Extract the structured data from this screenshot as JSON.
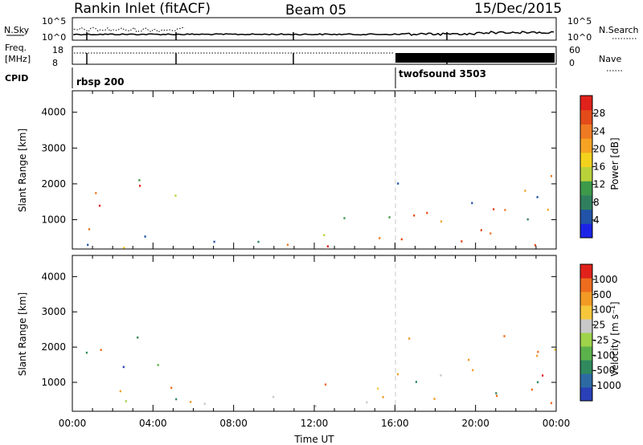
{
  "header": {
    "station": "Rankin Inlet (fitACF)",
    "beam": "Beam 05",
    "date": "15/Dec/2015"
  },
  "params": {
    "nsky_label": "N.Sky",
    "nsky_ticks": [
      "10^5",
      "10^0"
    ],
    "nsearch_label": "N.Search",
    "nsearch_ticks": [
      "10^5",
      "10^0"
    ],
    "freq_label_1": "Freq.",
    "freq_label_2": "[MHz]",
    "freq_ticks": [
      "18",
      "8"
    ],
    "nave_label": "Nave",
    "nave_ticks": [
      "60",
      "0"
    ],
    "cpid_label": "CPID",
    "cpid_segments": [
      {
        "name": "rbsp 200",
        "start_hour": 0,
        "end_hour": 16
      },
      {
        "name": "twofsound 3503",
        "start_hour": 16,
        "end_hour": 24
      }
    ]
  },
  "chart_data": [
    {
      "type": "heatmap",
      "quantity": "power",
      "ylabel": "Slant Range [km]",
      "xlabel": "",
      "x_ticks": [
        "00:00",
        "04:00",
        "08:00",
        "12:00",
        "16:00",
        "20:00",
        "00:00"
      ],
      "xlim_hours": [
        0,
        24
      ],
      "ylim_km": [
        180,
        4600
      ],
      "y_ticks": [
        1000,
        2000,
        3000,
        4000
      ],
      "colorbar": {
        "label": "Power [dB]",
        "ticks": [
          "28",
          "24",
          "20",
          "16",
          "12",
          "8",
          "4"
        ],
        "colors": [
          "#1b24e6",
          "#2153a8",
          "#2f7f5e",
          "#3d9a4a",
          "#b9d23a",
          "#f3d21d",
          "#f6a324",
          "#ef7a23",
          "#e44b1a",
          "#e0221a"
        ]
      }
    },
    {
      "type": "heatmap",
      "quantity": "velocity",
      "ylabel": "Slant Range [km]",
      "xlabel": "Time UT",
      "x_ticks": [
        "00:00",
        "04:00",
        "08:00",
        "12:00",
        "16:00",
        "20:00",
        "00:00"
      ],
      "xlim_hours": [
        0,
        24
      ],
      "ylim_km": [
        180,
        4600
      ],
      "y_ticks": [
        1000,
        2000,
        3000,
        4000
      ],
      "colorbar": {
        "label": "Velocity [m s⁻¹]",
        "ticks": [
          "1000",
          "500",
          "100",
          "25",
          "-25",
          "-100",
          "-500",
          "-1000"
        ],
        "colors": [
          "#2940b8",
          "#2d6aa4",
          "#2f8a5e",
          "#5cb24a",
          "#9fd34a",
          "#c8c8c8",
          "#f6c73a",
          "#f29a24",
          "#ee6c1e",
          "#e0221a"
        ]
      }
    }
  ],
  "scatter_regions": {
    "power": [
      {
        "h0": 0.1,
        "h1": 1.3,
        "r0": 1450,
        "r1": 2100,
        "c": [
          "#e44b1a",
          "#ef7a23",
          "#f3d21d",
          "#3d9a4a",
          "#e0221a"
        ]
      },
      {
        "h0": 1.3,
        "h1": 3.8,
        "r0": 1300,
        "r1": 2450,
        "c": [
          "#e44b1a",
          "#ef7a23",
          "#f6a324",
          "#2153a8",
          "#3d9a4a",
          "#e0221a"
        ]
      },
      {
        "h0": 3.8,
        "h1": 5.1,
        "r0": 1050,
        "r1": 2050,
        "c": [
          "#2153a8",
          "#3d9a4a",
          "#b9d23a",
          "#2f7f5e"
        ]
      },
      {
        "h0": 0.1,
        "h1": 5.3,
        "r0": 220,
        "r1": 900,
        "c": [
          "#e0221a",
          "#e44b1a",
          "#ef7a23",
          "#f6a324",
          "#f3d21d",
          "#3d9a4a",
          "#2153a8"
        ]
      },
      {
        "h0": 5.3,
        "h1": 9.5,
        "r0": 220,
        "r1": 650,
        "c": [
          "#2153a8",
          "#3d9a4a",
          "#b9d23a",
          "#2f7f5e",
          "#f6a324"
        ]
      },
      {
        "h0": 9.5,
        "h1": 12.5,
        "r0": 220,
        "r1": 700,
        "c": [
          "#2153a8",
          "#3d9a4a",
          "#ef7a23",
          "#b9d23a"
        ]
      },
      {
        "h0": 12.5,
        "h1": 14.8,
        "r0": 260,
        "r1": 1200,
        "c": [
          "#ef7a23",
          "#e44b1a",
          "#f6a324",
          "#3d9a4a",
          "#2153a8",
          "#e0221a"
        ]
      },
      {
        "h0": 14.8,
        "h1": 16.3,
        "r0": 300,
        "r1": 1700,
        "c": [
          "#ef7a23",
          "#f6a324",
          "#b9d23a",
          "#3d9a4a",
          "#2153a8"
        ]
      },
      {
        "h0": 16.0,
        "h1": 17.4,
        "r0": 1900,
        "r1": 2400,
        "c": [
          "#2153a8",
          "#3d9a4a",
          "#2f7f5e"
        ]
      },
      {
        "h0": 16.0,
        "h1": 19.2,
        "r0": 300,
        "r1": 1300,
        "c": [
          "#e44b1a",
          "#ef7a23",
          "#f6a324",
          "#3d9a4a",
          "#e0221a",
          "#2153a8"
        ]
      },
      {
        "h0": 19.2,
        "h1": 24.0,
        "r0": 300,
        "r1": 1200,
        "c": [
          "#e0221a",
          "#e44b1a",
          "#ef7a23",
          "#2f7f5e",
          "#3d9a4a",
          "#f6a324"
        ]
      },
      {
        "h0": 19.5,
        "h1": 24.0,
        "r0": 1200,
        "r1": 2500,
        "c": [
          "#ef7a23",
          "#e44b1a",
          "#f6a324",
          "#3d9a4a",
          "#2153a8"
        ]
      }
    ],
    "velocity": [
      {
        "h0": 0.1,
        "h1": 1.3,
        "r0": 1450,
        "r1": 2100,
        "c": [
          "#ee6c1e",
          "#f29a24",
          "#2f8a5e",
          "#c8c8c8",
          "#f6c73a"
        ]
      },
      {
        "h0": 1.3,
        "h1": 3.8,
        "r0": 1300,
        "r1": 2450,
        "c": [
          "#2d6aa4",
          "#2f8a5e",
          "#2940b8",
          "#5cb24a",
          "#ee6c1e"
        ]
      },
      {
        "h0": 3.8,
        "h1": 5.1,
        "r0": 1050,
        "r1": 2050,
        "c": [
          "#2d6aa4",
          "#2f8a5e",
          "#2940b8",
          "#5cb24a"
        ]
      },
      {
        "h0": 0.1,
        "h1": 5.3,
        "r0": 220,
        "r1": 900,
        "c": [
          "#c8c8c8",
          "#5cb24a",
          "#2f8a5e",
          "#f29a24",
          "#9fd34a",
          "#ee6c1e"
        ]
      },
      {
        "h0": 5.3,
        "h1": 9.5,
        "r0": 220,
        "r1": 650,
        "c": [
          "#c8c8c8",
          "#5cb24a",
          "#f29a24",
          "#2f8a5e"
        ]
      },
      {
        "h0": 9.5,
        "h1": 12.5,
        "r0": 220,
        "r1": 700,
        "c": [
          "#c8c8c8",
          "#f29a24",
          "#5cb24a",
          "#f6c73a"
        ]
      },
      {
        "h0": 12.5,
        "h1": 14.8,
        "r0": 260,
        "r1": 1200,
        "c": [
          "#f29a24",
          "#ee6c1e",
          "#2f8a5e",
          "#5cb24a",
          "#c8c8c8"
        ]
      },
      {
        "h0": 14.8,
        "h1": 16.3,
        "r0": 300,
        "r1": 1700,
        "c": [
          "#ee6c1e",
          "#f29a24",
          "#f6c73a",
          "#2f8a5e"
        ]
      },
      {
        "h0": 16.0,
        "h1": 17.4,
        "r0": 1900,
        "r1": 2400,
        "c": [
          "#ee6c1e",
          "#f29a24",
          "#e0221a"
        ]
      },
      {
        "h0": 16.0,
        "h1": 19.2,
        "r0": 300,
        "r1": 1300,
        "c": [
          "#2f8a5e",
          "#5cb24a",
          "#f29a24",
          "#c8c8c8",
          "#2d6aa4"
        ]
      },
      {
        "h0": 19.2,
        "h1": 24.0,
        "r0": 300,
        "r1": 1200,
        "c": [
          "#ee6c1e",
          "#f29a24",
          "#2f8a5e",
          "#c8c8c8",
          "#5cb24a"
        ]
      },
      {
        "h0": 19.5,
        "h1": 24.0,
        "r0": 1200,
        "r1": 2500,
        "c": [
          "#ee6c1e",
          "#f29a24",
          "#e0221a",
          "#f6c73a"
        ]
      }
    ]
  }
}
